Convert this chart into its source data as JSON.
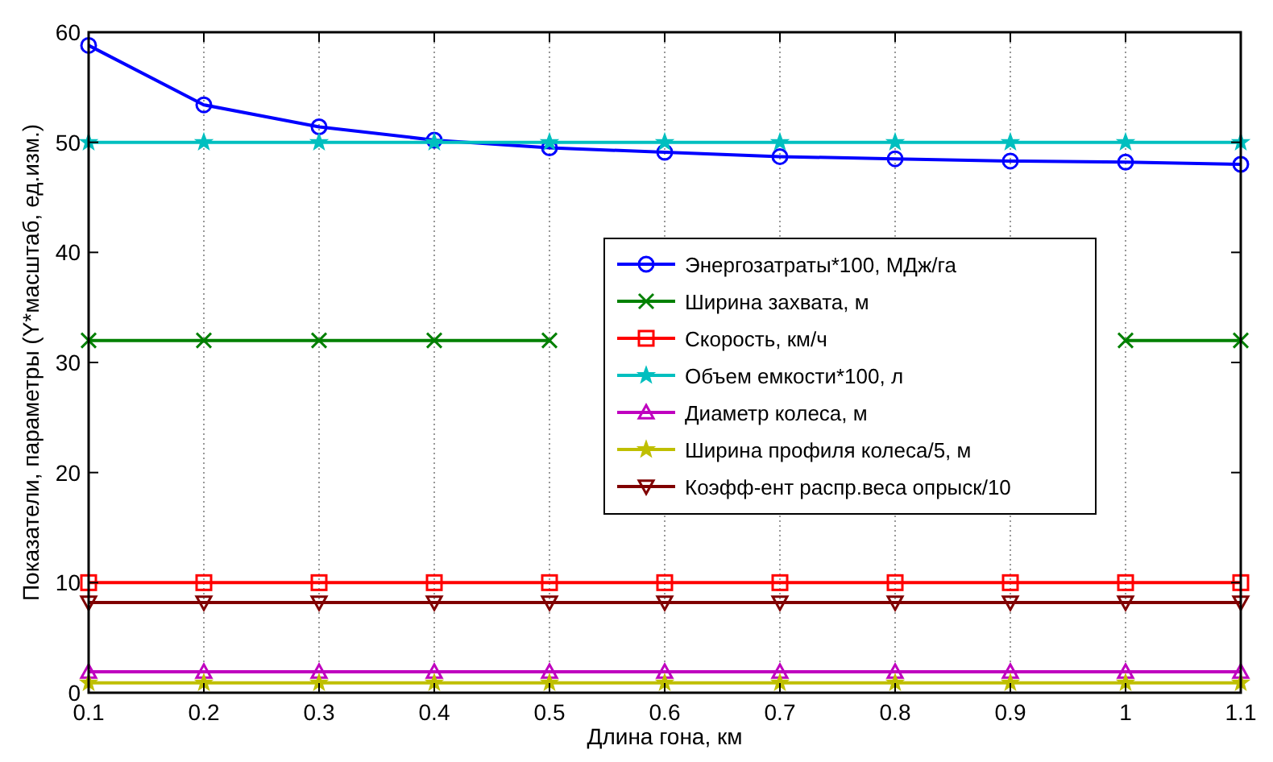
{
  "chart_data": {
    "type": "line",
    "xlabel": "Длина гона, км",
    "ylabel": "Показатели, параметры (Y*масштаб, ед.изм.)",
    "x": [
      0.1,
      0.2,
      0.3,
      0.4,
      0.5,
      0.6,
      0.7,
      0.8,
      0.9,
      1,
      1.1
    ],
    "xlim": [
      0.1,
      1.1
    ],
    "xticks": [
      0.1,
      0.2,
      0.3,
      0.4,
      0.5,
      0.6,
      0.7,
      0.8,
      0.9,
      1,
      1.1
    ],
    "ylim": [
      0,
      60
    ],
    "yticks": [
      0,
      10,
      20,
      30,
      40,
      50,
      60
    ],
    "grid": "x",
    "legend": "right",
    "series": [
      {
        "name": "Энергозатраты*100, МДж/га",
        "color": "#0000ff",
        "marker": "circle",
        "values": [
          58.8,
          53.4,
          51.4,
          50.2,
          49.5,
          49.1,
          48.7,
          48.5,
          48.3,
          48.2,
          48.0
        ]
      },
      {
        "name": "Ширина захвата, м",
        "color": "#008000",
        "marker": "cross",
        "values": [
          32,
          32,
          32,
          32,
          32,
          null,
          null,
          null,
          null,
          32,
          32
        ]
      },
      {
        "name": "Скорость, км/ч",
        "color": "#ff0000",
        "marker": "square",
        "values": [
          10,
          10,
          10,
          10,
          10,
          10,
          10,
          10,
          10,
          10,
          10
        ]
      },
      {
        "name": "Объем емкости*100, л",
        "color": "#00bfbf",
        "marker": "star",
        "values": [
          50,
          50,
          50,
          50,
          50,
          50,
          50,
          50,
          50,
          50,
          50
        ]
      },
      {
        "name": "Диаметр колеса, м",
        "color": "#bf00bf",
        "marker": "triangle",
        "values": [
          1.9,
          1.9,
          1.9,
          1.9,
          1.9,
          1.9,
          1.9,
          1.9,
          1.9,
          1.9,
          1.9
        ]
      },
      {
        "name": "Ширина профиля колеса/5, м",
        "color": "#bfbf00",
        "marker": "star",
        "values": [
          0.9,
          0.9,
          0.9,
          0.9,
          0.9,
          0.9,
          0.9,
          0.9,
          0.9,
          0.9,
          0.9
        ]
      },
      {
        "name": "Коэфф-ент распр.веса опрыск/10",
        "color": "#800000",
        "marker": "triangle-down",
        "values": [
          8.2,
          8.2,
          8.2,
          8.2,
          8.2,
          8.2,
          8.2,
          8.2,
          8.2,
          8.2,
          8.2
        ]
      }
    ]
  }
}
